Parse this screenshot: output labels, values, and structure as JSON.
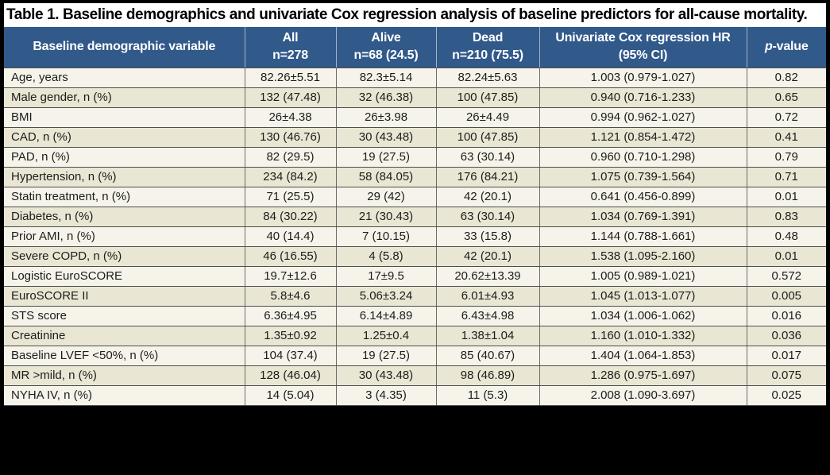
{
  "title": "Table 1. Baseline demographics and univariate Cox regression analysis of baseline predictors for all-cause mortality.",
  "colors": {
    "header_bg": "#31598A",
    "header_divider": "#A6B3C3",
    "row_odd": "#F6F4EA",
    "row_even": "#E9E7D3",
    "border_h": "#4D4D4D",
    "border_v": "#6B6B6B",
    "frame": "#000000",
    "body_text": "#1C1C1C"
  },
  "table": {
    "columns": [
      {
        "label": "Baseline demographic variable"
      },
      {
        "line1": "All",
        "line2": "n=278"
      },
      {
        "line1": "Alive",
        "line2": "n=68 (24.5)"
      },
      {
        "line1": "Dead",
        "line2": "n=210 (75.5)"
      },
      {
        "line1": "Univariate Cox regression HR",
        "line2": "(95% CI)"
      },
      {
        "italic": "p",
        "label": "-value"
      }
    ],
    "rows": [
      {
        "variable": "Age, years",
        "all": "82.26±5.51",
        "alive": "82.3±5.14",
        "dead": "82.24±5.63",
        "hr": "1.003 (0.979-1.027)",
        "p": "0.82"
      },
      {
        "variable": "Male gender, n (%)",
        "all": "132 (47.48)",
        "alive": "32 (46.38)",
        "dead": "100 (47.85)",
        "hr": "0.940 (0.716-1.233)",
        "p": "0.65"
      },
      {
        "variable": "BMI",
        "all": "26±4.38",
        "alive": "26±3.98",
        "dead": "26±4.49",
        "hr": "0.994 (0.962-1.027)",
        "p": "0.72"
      },
      {
        "variable": "CAD, n (%)",
        "all": "130 (46.76)",
        "alive": "30 (43.48)",
        "dead": "100 (47.85)",
        "hr": "1.121 (0.854-1.472)",
        "p": "0.41"
      },
      {
        "variable": "PAD, n (%)",
        "all": "82 (29.5)",
        "alive": "19 (27.5)",
        "dead": "63 (30.14)",
        "hr": "0.960 (0.710-1.298)",
        "p": "0.79"
      },
      {
        "variable": "Hypertension, n (%)",
        "all": "234 (84.2)",
        "alive": "58 (84.05)",
        "dead": "176 (84.21)",
        "hr": "1.075 (0.739-1.564)",
        "p": "0.71"
      },
      {
        "variable": "Statin treatment, n (%)",
        "all": "71 (25.5)",
        "alive": "29 (42)",
        "dead": "42 (20.1)",
        "hr": "0.641 (0.456-0.899)",
        "p": "0.01"
      },
      {
        "variable": "Diabetes, n (%)",
        "all": "84 (30.22)",
        "alive": "21 (30.43)",
        "dead": "63 (30.14)",
        "hr": "1.034 (0.769-1.391)",
        "p": "0.83"
      },
      {
        "variable": "Prior AMI, n (%)",
        "all": "40 (14.4)",
        "alive": "7 (10.15)",
        "dead": "33 (15.8)",
        "hr": "1.144 (0.788-1.661)",
        "p": "0.48"
      },
      {
        "variable": "Severe COPD, n (%)",
        "all": "46 (16.55)",
        "alive": "4 (5.8)",
        "dead": "42 (20.1)",
        "hr": "1.538 (1.095-2.160)",
        "p": "0.01"
      },
      {
        "variable": "Logistic EuroSCORE",
        "all": "19.7±12.6",
        "alive": "17±9.5",
        "dead": "20.62±13.39",
        "hr": "1.005 (0.989-1.021)",
        "p": "0.572"
      },
      {
        "variable": "EuroSCORE II",
        "all": "5.8±4.6",
        "alive": "5.06±3.24",
        "dead": "6.01±4.93",
        "hr": "1.045 (1.013-1.077)",
        "p": "0.005"
      },
      {
        "variable": "STS score",
        "all": "6.36±4.95",
        "alive": "6.14±4.89",
        "dead": "6.43±4.98",
        "hr": "1.034 (1.006-1.062)",
        "p": "0.016"
      },
      {
        "variable": "Creatinine",
        "all": "1.35±0.92",
        "alive": "1.25±0.4",
        "dead": "1.38±1.04",
        "hr": "1.160 (1.010-1.332)",
        "p": "0.036"
      },
      {
        "variable": "Baseline LVEF <50%, n (%)",
        "all": "104 (37.4)",
        "alive": "19 (27.5)",
        "dead": "85 (40.67)",
        "hr": "1.404 (1.064-1.853)",
        "p": "0.017"
      },
      {
        "variable": "MR >mild, n (%)",
        "all": "128 (46.04)",
        "alive": "30 (43.48)",
        "dead": "98 (46.89)",
        "hr": "1.286 (0.975-1.697)",
        "p": "0.075"
      },
      {
        "variable": "NYHA IV, n (%)",
        "all": "14 (5.04)",
        "alive": "3 (4.35)",
        "dead": "11 (5.3)",
        "hr": "2.008 (1.090-3.697)",
        "p": "0.025"
      }
    ]
  }
}
